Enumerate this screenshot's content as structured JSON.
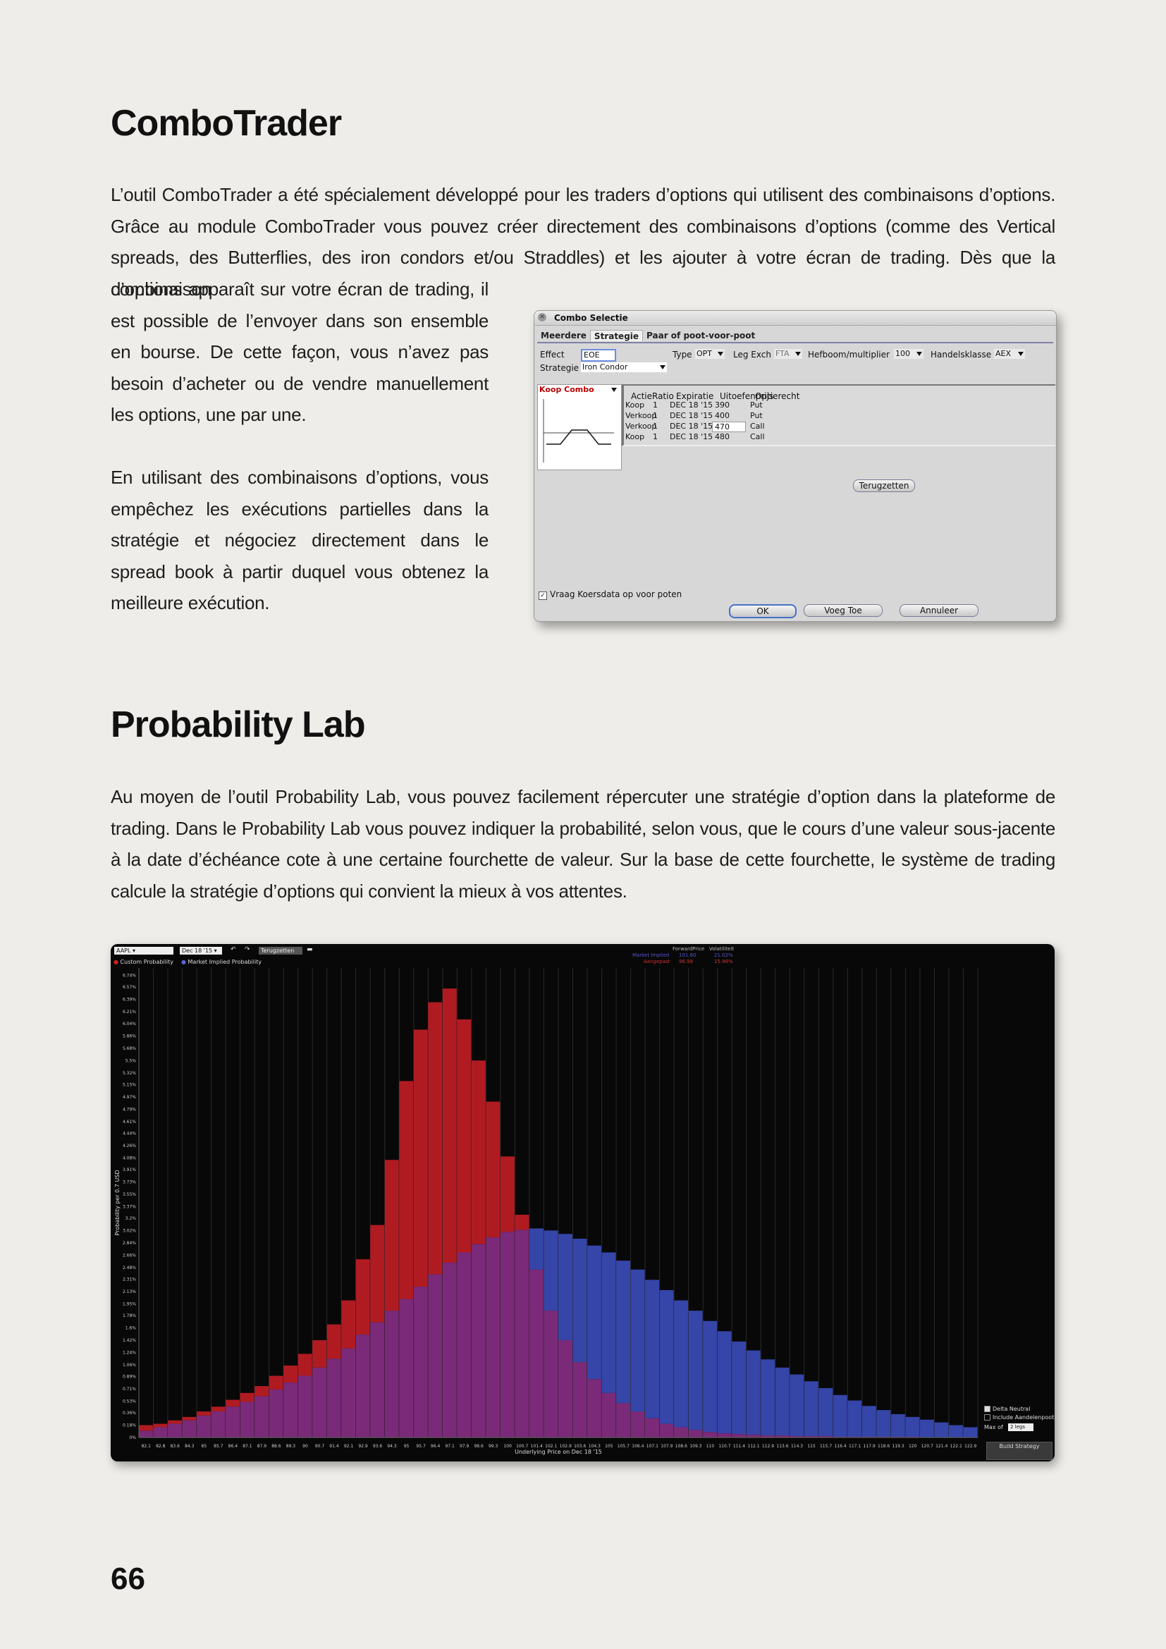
{
  "section1": {
    "title": "ComboTrader",
    "p1_full": "L’outil ComboTrader a été spécialement développé pour les traders d’options qui utilisent des combinaisons d’options. Grâce au module ComboTrader vous pouvez créer directement des combinaisons d’options (comme des Vertical spreads, des Butterflies, des iron condors et/ou Straddles) et les ajouter à votre écran de trading. Dès que la combinaison",
    "p1_narrow": "d’options apparaît sur votre écran de trading, il est possible de l’envoyer dans son ensemble en bourse. De cette façon, vous n’avez pas besoin d’acheter ou de vendre manuellement les options, une par une.",
    "p2": "En utilisant des combinaisons d’options, vous empêchez les exécutions partielles dans la stratégie et négociez directement dans le spread book à partir duquel vous obtenez la meilleure exécution."
  },
  "combo_window": {
    "title": "Combo Selectie",
    "tabs": [
      "Meerdere",
      "Strategie",
      "Paar of poot-voor-poot"
    ],
    "effect_label": "Effect",
    "effect_value": "EOE",
    "type_label": "Type",
    "type_value": "OPT",
    "leg_exch_label": "Leg Exch",
    "leg_exch_value": "FTA",
    "multiplier_label": "Hefboom/multiplier",
    "multiplier_value": "100",
    "class_label": "Handelsklasse",
    "class_value": "AEX",
    "strategy_label": "Strategie",
    "strategy_value": "Iron Condor",
    "koop_combo": "Koop Combo",
    "legs_headers": [
      "Actie",
      "Ratio",
      "Expiratie",
      "Uitoefenprijs",
      "Optierecht"
    ],
    "legs": [
      {
        "actie": "Koop",
        "ratio": "1",
        "expiratie": "DEC 18 '15",
        "strike": "390",
        "recht": "Put"
      },
      {
        "actie": "Verkoop",
        "ratio": "1",
        "expiratie": "DEC 18 '15",
        "strike": "400",
        "recht": "Put"
      },
      {
        "actie": "Verkoop",
        "ratio": "1",
        "expiratie": "DEC 18 '15",
        "strike": "470",
        "recht": "Call"
      },
      {
        "actie": "Koop",
        "ratio": "1",
        "expiratie": "DEC 18 '15",
        "strike": "480",
        "recht": "Call"
      }
    ],
    "reset_button": "Terugzetten",
    "checkbox_label": "Vraag Koersdata op voor poten",
    "ok_button": "OK",
    "add_button": "Voeg Toe",
    "cancel_button": "Annuleer"
  },
  "section2": {
    "title": "Probability Lab",
    "p1": "Au moyen de l’outil Probability Lab, vous pouvez facilement répercuter une stratégie d’option dans la plateforme de trading. Dans le Probability Lab vous pouvez indiquer la probabilité, selon vous, que le cours d’une valeur sous-jacente à la date d’échéance cote à une certaine fourchette de valeur. Sur la base de cette fourchette, le système de trading calcule la stratégie d’options qui convient la mieux à vos attentes."
  },
  "lab": {
    "symbol": "AAPL",
    "expiry": "Dec 18 '15",
    "reset": "Terugzetten",
    "legend_custom": "Custom Probability",
    "legend_market": "Market Implied Probability",
    "stat_head1": "ForwardPrice",
    "stat_head2": "Volatiliteit",
    "stat_market": "Market Implied",
    "stat_market_fp": "101.60",
    "stat_market_vol": "21.02%",
    "stat_custom": "Aangepast",
    "stat_custom_fp": "96.98",
    "stat_custom_vol": "15.98%",
    "side_delta": "Delta Neutral",
    "side_include": "Include Aandelenpoot",
    "side_max": "Max of",
    "side_legs": "2 legs",
    "build": "Build Strategy",
    "colors": {
      "custom": "#b01b22",
      "market": "#3545a8",
      "overlap": "#7a2a78"
    }
  },
  "chart_data": {
    "type": "bar",
    "xlabel": "Underlying Price on Dec 18 '15",
    "ylabel": "Probability per 0.7 USD",
    "ylim": [
      0,
      6.85
    ],
    "y_ticks": [
      "0%",
      "0.18%",
      "0.36%",
      "0.53%",
      "0.71%",
      "0.89%",
      "1.06%",
      "1.24%",
      "1.42%",
      "1.6%",
      "1.78%",
      "1.95%",
      "2.13%",
      "2.31%",
      "2.48%",
      "2.66%",
      "2.84%",
      "3.02%",
      "3.2%",
      "3.37%",
      "3.55%",
      "3.73%",
      "3.91%",
      "4.08%",
      "4.26%",
      "4.44%",
      "4.61%",
      "4.79%",
      "4.97%",
      "5.15%",
      "5.32%",
      "5.5%",
      "5.68%",
      "5.86%",
      "6.04%",
      "6.21%",
      "6.39%",
      "6.57%",
      "6.74%"
    ],
    "x_ticks": [
      "82.1",
      "82.8",
      "83.6",
      "84.3",
      "85",
      "85.7",
      "86.4",
      "87.1",
      "87.9",
      "88.6",
      "89.3",
      "90",
      "90.7",
      "91.4",
      "92.1",
      "92.9",
      "93.6",
      "94.3",
      "95",
      "95.7",
      "96.4",
      "97.1",
      "97.9",
      "98.6",
      "99.3",
      "100",
      "100.7",
      "101.4",
      "102.1",
      "102.9",
      "103.6",
      "104.3",
      "105",
      "105.7",
      "106.4",
      "107.1",
      "107.9",
      "108.6",
      "109.3",
      "110",
      "110.7",
      "111.4",
      "112.1",
      "112.9",
      "113.6",
      "114.3",
      "115",
      "115.7",
      "116.4",
      "117.1",
      "117.9",
      "118.6",
      "119.3",
      "120",
      "120.7",
      "121.4",
      "122.1",
      "122.9"
    ],
    "series": [
      {
        "name": "Custom Probability",
        "values": [
          0.18,
          0.2,
          0.25,
          0.3,
          0.38,
          0.45,
          0.55,
          0.65,
          0.75,
          0.9,
          1.05,
          1.22,
          1.42,
          1.65,
          2.0,
          2.6,
          3.1,
          4.05,
          5.2,
          5.95,
          6.35,
          6.55,
          6.1,
          5.5,
          4.9,
          4.1,
          3.25,
          2.45,
          1.85,
          1.42,
          1.1,
          0.85,
          0.65,
          0.5,
          0.38,
          0.28,
          0.2,
          0.15,
          0.11,
          0.08,
          0.06,
          0.05,
          0.04,
          0.03,
          0.03,
          0.02,
          0.02,
          0.02,
          0.01,
          0.01,
          0.01,
          0.01,
          0.01,
          0.01,
          0.0,
          0.0,
          0.0,
          0.0
        ]
      },
      {
        "name": "Market Implied Probability",
        "values": [
          0.1,
          0.15,
          0.2,
          0.25,
          0.32,
          0.38,
          0.45,
          0.52,
          0.6,
          0.7,
          0.8,
          0.9,
          1.02,
          1.15,
          1.3,
          1.5,
          1.68,
          1.85,
          2.02,
          2.2,
          2.38,
          2.55,
          2.7,
          2.82,
          2.92,
          3.0,
          3.03,
          3.05,
          3.02,
          2.97,
          2.9,
          2.8,
          2.7,
          2.58,
          2.45,
          2.3,
          2.15,
          2.0,
          1.85,
          1.7,
          1.55,
          1.4,
          1.27,
          1.14,
          1.02,
          0.92,
          0.82,
          0.72,
          0.62,
          0.54,
          0.46,
          0.4,
          0.34,
          0.3,
          0.26,
          0.22,
          0.18,
          0.15
        ]
      }
    ]
  },
  "page_number": "66"
}
